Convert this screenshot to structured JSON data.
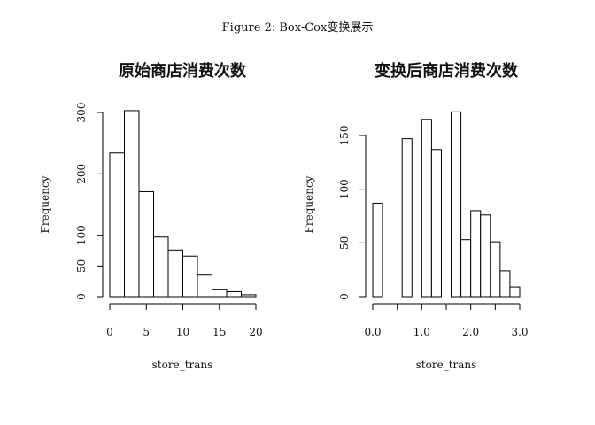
{
  "figure_caption": "Figure 2: Box-Cox变换展示",
  "chart_data": [
    {
      "type": "bar",
      "title": "原始商店消费次数",
      "xlabel": "store_trans",
      "ylabel": "Frequency",
      "bin_edges": [
        0,
        2,
        4,
        6,
        8,
        10,
        12,
        14,
        16,
        18,
        20
      ],
      "values": [
        234,
        303,
        171,
        97,
        76,
        66,
        35,
        12,
        8,
        3
      ],
      "xlim": [
        0,
        20
      ],
      "ylim": [
        0,
        300
      ],
      "x_ticks": [
        0,
        5,
        10,
        15,
        20
      ],
      "x_tick_labels": [
        "0",
        "5",
        "10",
        "15",
        "20"
      ],
      "y_ticks": [
        0,
        50,
        100,
        200,
        300
      ],
      "y_tick_labels": [
        "0",
        "50",
        "100",
        "200",
        "300"
      ],
      "grid": false,
      "legend": "none"
    },
    {
      "type": "bar",
      "title": "变换后商店消费次数",
      "xlabel": "store_trans",
      "ylabel": "Frequency",
      "bin_edges": [
        0.0,
        0.2,
        0.4,
        0.6,
        0.8,
        1.0,
        1.2,
        1.4,
        1.6,
        1.8,
        2.0,
        2.2,
        2.4,
        2.6,
        2.8,
        3.0
      ],
      "values": [
        87,
        0,
        0,
        147,
        0,
        165,
        137,
        0,
        172,
        53,
        80,
        76,
        51,
        24,
        9
      ],
      "xlim": [
        0,
        3
      ],
      "ylim": [
        0,
        150
      ],
      "x_ticks": [
        0.0,
        0.5,
        1.0,
        1.5,
        2.0,
        2.5,
        3.0
      ],
      "x_tick_labels": [
        "0.0",
        "",
        "1.0",
        "",
        "2.0",
        "",
        "3.0"
      ],
      "y_ticks": [
        0,
        50,
        100,
        150
      ],
      "y_tick_labels": [
        "0",
        "50",
        "100",
        "150"
      ],
      "grid": false,
      "legend": "none"
    }
  ]
}
